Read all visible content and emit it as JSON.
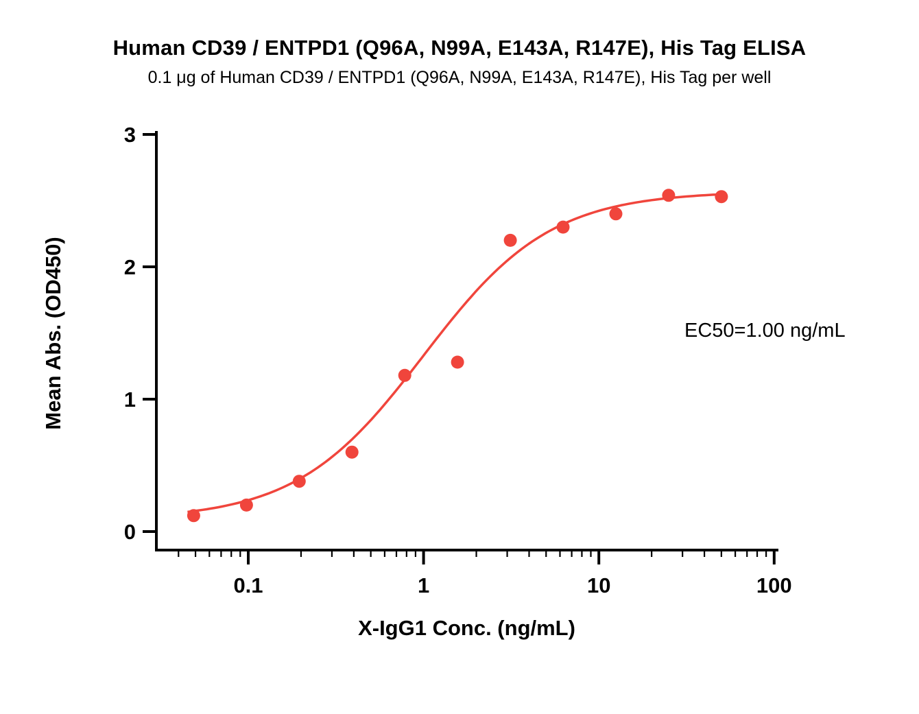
{
  "title": "Human CD39 / ENTPD1 (Q96A, N99A, E143A, R147E), His Tag ELISA",
  "subtitle": "0.1 μg of Human CD39 / ENTPD1 (Q96A, N99A, E143A, R147E), His Tag per well",
  "annotation": "EC50=1.00 ng/mL",
  "chart_data": {
    "type": "scatter",
    "x_scale": "log10",
    "xlabel": "X-IgG1 Conc. (ng/mL)",
    "ylabel": "Mean Abs. (OD450)",
    "xlim": [
      0.03,
      104
    ],
    "ylim": [
      0,
      3
    ],
    "x_ticks": [
      0.1,
      1,
      10,
      100
    ],
    "x_tick_labels": [
      "0.1",
      "1",
      "10",
      "100"
    ],
    "y_ticks": [
      0,
      1,
      2,
      3
    ],
    "y_tick_labels": [
      "0",
      "1",
      "2",
      "3"
    ],
    "grid": false,
    "legend": "none",
    "points": {
      "x": [
        0.0488,
        0.0977,
        0.1953,
        0.3906,
        0.7813,
        1.5625,
        3.125,
        6.25,
        12.5,
        25,
        50
      ],
      "y": [
        0.12,
        0.2,
        0.38,
        0.6,
        1.18,
        1.28,
        2.2,
        2.3,
        2.4,
        2.54,
        2.53
      ]
    },
    "fit": {
      "model": "4PL",
      "bottom": 0.09,
      "top": 2.57,
      "ec50": 1.0,
      "hill": 1.2
    },
    "point_color": "#F0453C",
    "curve_color": "#F0453C",
    "axis_color": "#000000",
    "background_color": "#FFFFFF"
  }
}
